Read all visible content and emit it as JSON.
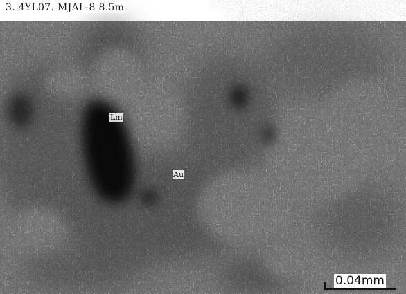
{
  "caption": "3. 4YL07. MJAL-8  8.5m",
  "labels": {
    "lm": "Lm",
    "au": "Au"
  },
  "scale_bar": {
    "text": "0.04mm"
  }
}
